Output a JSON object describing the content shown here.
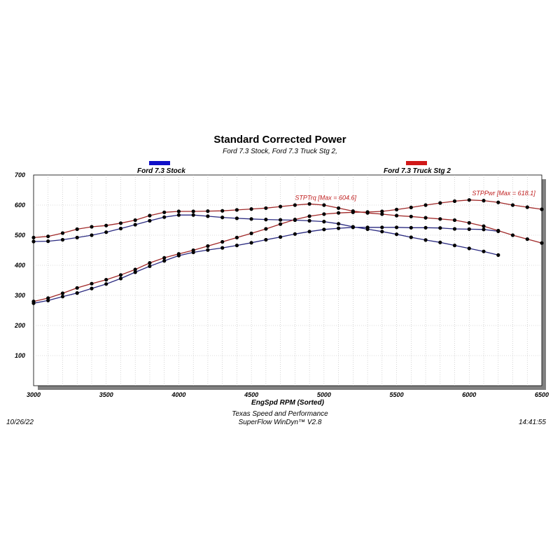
{
  "chart_data": {
    "type": "line",
    "title": "Standard Corrected Power",
    "subtitle": "Ford 7.3 Stock, Ford 7.3 Truck Stg 2,",
    "xlabel": "EngSpd  RPM   (Sorted)",
    "xlim": [
      3000,
      6500
    ],
    "ylim": [
      0,
      700
    ],
    "x_ticks": [
      3000,
      3500,
      4000,
      4500,
      5000,
      5500,
      6000,
      6500
    ],
    "y_ticks": [
      100,
      200,
      300,
      400,
      500,
      600,
      700
    ],
    "grid": true,
    "legend": [
      {
        "name": "Ford 7.3 Stock",
        "color": "#1010c8"
      },
      {
        "name": "Ford 7.3 Truck Stg 2",
        "color": "#d01818"
      }
    ],
    "series": [
      {
        "name": "Ford 7.3 Stock STPTrq",
        "color": "#2a2a80",
        "x": [
          3000,
          3100,
          3200,
          3300,
          3400,
          3500,
          3600,
          3700,
          3800,
          3900,
          4000,
          4100,
          4200,
          4300,
          4400,
          4500,
          4600,
          4700,
          4800,
          4900,
          5000,
          5100,
          5200,
          5300,
          5400,
          5500,
          5600,
          5700,
          5800,
          5900,
          6000,
          6100,
          6200
        ],
        "y": [
          479,
          480,
          485,
          492,
          500,
          510,
          522,
          535,
          548,
          560,
          567,
          567,
          563,
          559,
          556,
          554,
          552,
          551,
          550,
          548,
          545,
          538,
          528,
          520,
          512,
          503,
          493,
          484,
          476,
          466,
          456,
          446,
          434
        ]
      },
      {
        "name": "Ford 7.3 Stock STPPwr",
        "color": "#2a2a80",
        "x": [
          3000,
          3100,
          3200,
          3300,
          3400,
          3500,
          3600,
          3700,
          3800,
          3900,
          4000,
          4100,
          4200,
          4300,
          4400,
          4500,
          4600,
          4700,
          4800,
          4900,
          5000,
          5100,
          5200,
          5300,
          5400,
          5500,
          5600,
          5700,
          5800,
          5900,
          6000,
          6100,
          6200
        ],
        "y": [
          274,
          283,
          296,
          308,
          323,
          338,
          356,
          377,
          397,
          415,
          432,
          443,
          451,
          458,
          466,
          475,
          485,
          494,
          504,
          512,
          519,
          523,
          526,
          526,
          526,
          526,
          525,
          525,
          524,
          521,
          520,
          519,
          513
        ]
      },
      {
        "name": "Ford 7.3 Truck Stg 2 STPTrq",
        "color": "#a02828",
        "x": [
          3000,
          3100,
          3200,
          3300,
          3400,
          3500,
          3600,
          3700,
          3800,
          3900,
          4000,
          4100,
          4200,
          4300,
          4400,
          4500,
          4600,
          4700,
          4800,
          4900,
          5000,
          5100,
          5200,
          5300,
          5400,
          5500,
          5600,
          5700,
          5800,
          5900,
          6000,
          6100,
          6200,
          6300,
          6400,
          6500
        ],
        "y": [
          492,
          496,
          507,
          520,
          528,
          532,
          540,
          550,
          565,
          576,
          579,
          579,
          580,
          581,
          584,
          587,
          590,
          595,
          600,
          604,
          600,
          590,
          580,
          574,
          570,
          565,
          562,
          558,
          554,
          550,
          541,
          530,
          515,
          500,
          487,
          474
        ]
      },
      {
        "name": "Ford 7.3 Truck Stg 2 STPPwr",
        "color": "#a02828",
        "x": [
          3000,
          3100,
          3200,
          3300,
          3400,
          3500,
          3600,
          3700,
          3800,
          3900,
          4000,
          4100,
          4200,
          4300,
          4400,
          4500,
          4600,
          4700,
          4800,
          4900,
          5000,
          5100,
          5200,
          5300,
          5400,
          5500,
          5600,
          5700,
          5800,
          5900,
          6000,
          6100,
          6200,
          6300,
          6400,
          6500
        ],
        "y": [
          280,
          291,
          307,
          325,
          339,
          352,
          368,
          386,
          408,
          425,
          438,
          450,
          464,
          478,
          492,
          506,
          521,
          537,
          552,
          563,
          570,
          574,
          576,
          577,
          579,
          585,
          592,
          600,
          607,
          613,
          617,
          615,
          609,
          600,
          593,
          586
        ]
      }
    ],
    "annotations": [
      {
        "text": "STPTrq [Max = 604.6]",
        "x": 4800,
        "y": 618,
        "color": "#c02020"
      },
      {
        "text": "STPPwr [Max = 618.1]",
        "x": 6020,
        "y": 632,
        "color": "#c02020"
      }
    ]
  },
  "footer": {
    "date": "10/26/22",
    "center_line1": "Texas Speed and Performance",
    "center_line2": "SuperFlow WinDyn™  V2.8",
    "time": "14:41:55"
  }
}
